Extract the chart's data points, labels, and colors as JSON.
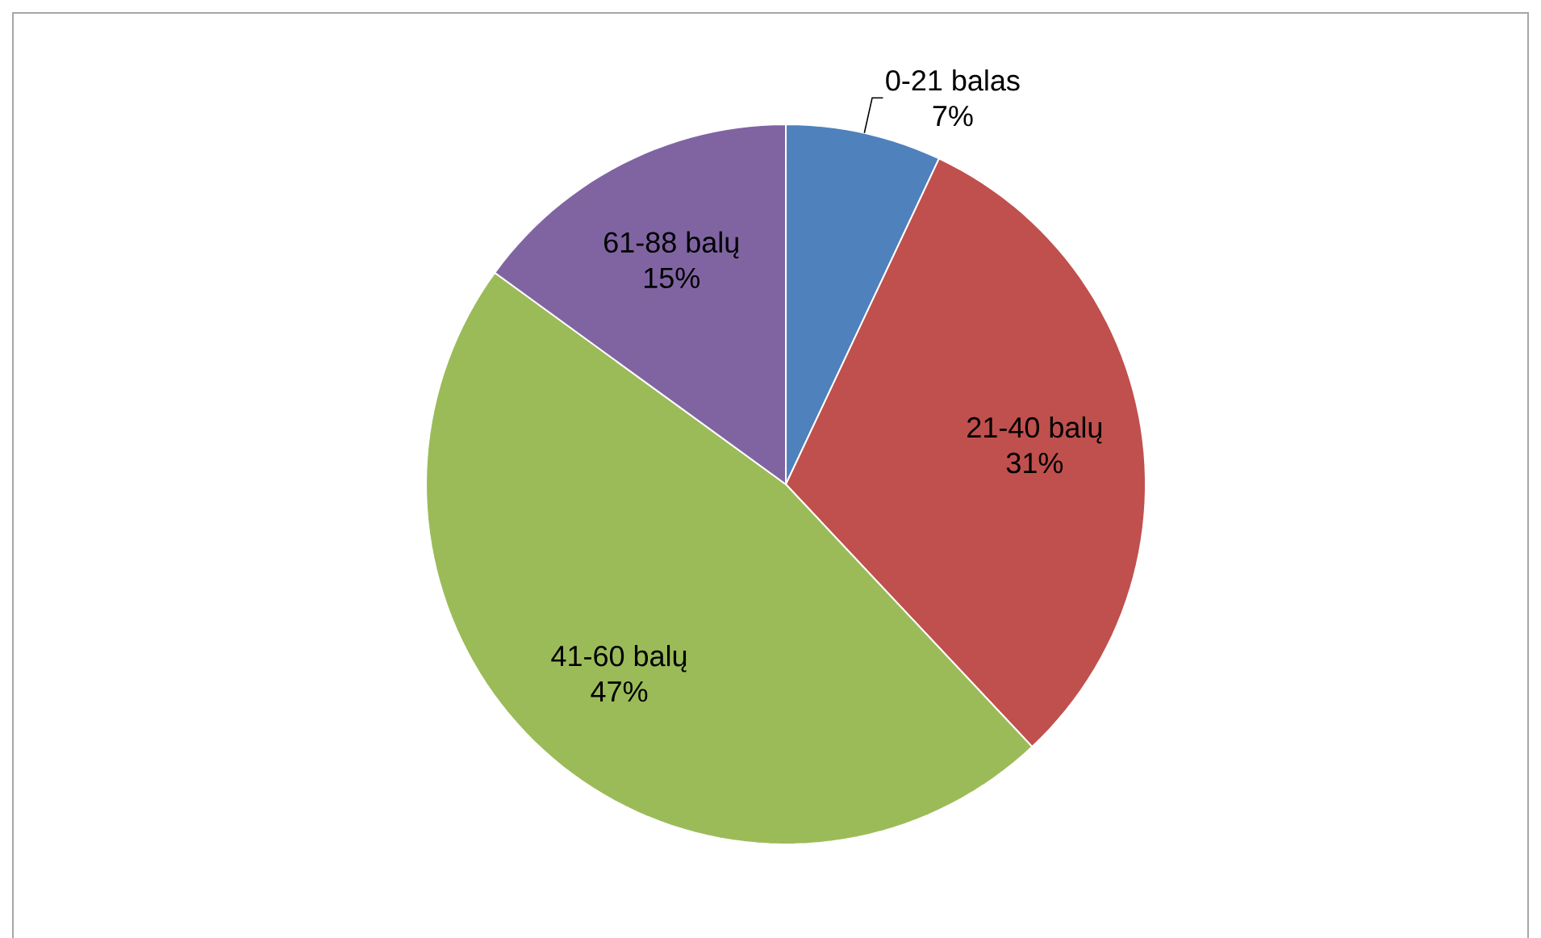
{
  "chart_data": {
    "type": "pie",
    "categories": [
      "0-21 balas",
      "21-40 balų",
      "41-60 balų",
      "61-88 balų"
    ],
    "values": [
      7,
      31,
      47,
      15
    ],
    "value_labels": [
      "7%",
      "31%",
      "47%",
      "15%"
    ],
    "colors": [
      "#4f81bd",
      "#c0504d",
      "#9bbb59",
      "#8064a2"
    ]
  }
}
